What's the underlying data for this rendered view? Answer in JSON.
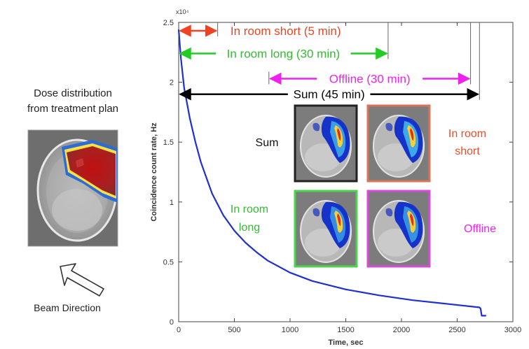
{
  "left_panel": {
    "title_line1": "Dose distribution",
    "title_line2": "from treatment plan",
    "beam_label": "Beam Direction"
  },
  "chart_data": {
    "type": "line",
    "title": "",
    "xlabel": "Time, sec",
    "ylabel": "Coincidence count rate, Hz",
    "y_multiplier_label": "x10⁴",
    "xlim": [
      0,
      3000
    ],
    "ylim": [
      0,
      2.5
    ],
    "x_ticks": [
      0,
      500,
      1000,
      1500,
      2000,
      2500,
      3000
    ],
    "y_ticks": [
      0,
      0.5,
      1,
      1.5,
      2,
      2.5
    ],
    "x_tick_labels": [
      "0",
      "500",
      "1000",
      "1500",
      "2000",
      "2500",
      "3000"
    ],
    "y_tick_labels": [
      "0",
      "0.5",
      "1",
      "1.5",
      "2",
      "2.5"
    ],
    "grid": false,
    "series": [
      {
        "color": "#1f2fd0",
        "x": [
          0,
          20,
          50,
          100,
          150,
          200,
          300,
          400,
          500,
          600,
          700,
          800,
          1000,
          1200,
          1500,
          1800,
          2100,
          2400,
          2700,
          2710,
          2720,
          2760
        ],
        "y": [
          2.44,
          2.2,
          1.95,
          1.7,
          1.5,
          1.33,
          1.07,
          0.89,
          0.76,
          0.66,
          0.58,
          0.51,
          0.41,
          0.34,
          0.27,
          0.22,
          0.18,
          0.15,
          0.12,
          0.11,
          0.05,
          0.05
        ]
      }
    ],
    "intervals": [
      {
        "label": "In room short (5 min)",
        "start": 0,
        "end": 350,
        "y": 2.43,
        "color": "#ee4422",
        "label_color": "#ee4422",
        "tick_end": 350
      },
      {
        "label": "In room long (30 min)",
        "start": 0,
        "end": 1880,
        "y": 2.24,
        "color": "#22cc22",
        "label_color": "#33bb33",
        "tick_end": 1880
      },
      {
        "label": "Offline (30 min)",
        "start": 810,
        "end": 2620,
        "y": 2.03,
        "color": "#ee22ee",
        "label_color": "#ee22ee",
        "tick_start": 810,
        "tick_end": 2620
      },
      {
        "label": "Sum (45 min)",
        "start": 0,
        "end": 2700,
        "y": 1.9,
        "color": "#000000",
        "label_color": "#000000",
        "tick_end": 2700
      }
    ],
    "image_labels": {
      "sum": "Sum",
      "short_line1": "In room",
      "short_line2": "short",
      "long_line1": "In room",
      "long_line2": "long",
      "offline": "Offline"
    },
    "image_frame_colors": {
      "sum": "#222222",
      "short": "#d9735a",
      "long": "#4cd44c",
      "offline": "#d84ad8"
    }
  }
}
